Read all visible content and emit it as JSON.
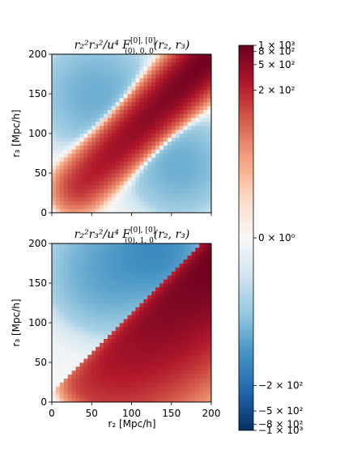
{
  "chart_data": [
    {
      "type": "heatmap",
      "title": "r_2^2 r_3^2/u^4 F^{[0],[0]}_{(0),0,0}(r_2, r_3)",
      "title_parts": {
        "main": "r₂²r₃²/u⁴ F",
        "sup": "[0], [0]",
        "sub": "(0), 0, 0",
        "args": "(r₂, r₃)"
      },
      "xlabel": "",
      "ylabel": "r₃ [Mpc/h]",
      "xlim": [
        0,
        200
      ],
      "ylim": [
        0,
        200
      ],
      "xticks": [
        "0",
        "50",
        "100",
        "150",
        "200"
      ],
      "yticks": [
        "0",
        "50",
        "100",
        "150",
        "200"
      ],
      "show_xtick_labels": false,
      "pattern": "diagonal_ridge",
      "description_values": {
        "peak": 850,
        "negative_min": -80,
        "ridge_width_mpc": 30
      }
    },
    {
      "type": "heatmap",
      "title": "r_2^2 r_3^2/u^4 F^{[0],[0]}_{(0),1,0}(r_2, r_3)",
      "title_parts": {
        "main": "r₂²r₃²/u⁴ F",
        "sup": "[0], [0]",
        "sub": "(0), 1, 0",
        "args": "(r₂, r₃)"
      },
      "xlabel": "r₂ [Mpc/h]",
      "ylabel": "r₃ [Mpc/h]",
      "xlim": [
        0,
        200
      ],
      "ylim": [
        0,
        200
      ],
      "xticks": [
        "0",
        "50",
        "100",
        "150",
        "200"
      ],
      "yticks": [
        "0",
        "50",
        "100",
        "150",
        "200"
      ],
      "show_xtick_labels": true,
      "pattern": "lower_triangle_positive",
      "description_values": {
        "peak": 1000,
        "negative_min": -150
      }
    }
  ],
  "colorbar": {
    "colormap": "RdBu_r",
    "range": [
      -1000,
      1000
    ],
    "symlog_linthresh": 10,
    "ticks": [
      {
        "value": 1000,
        "label": "1 × 10³"
      },
      {
        "value": 800,
        "label": "8 × 10²"
      },
      {
        "value": 500,
        "label": "5 × 10²"
      },
      {
        "value": 200,
        "label": "2 × 10²"
      },
      {
        "value": 0,
        "label": "0 × 10⁰"
      },
      {
        "value": -200,
        "label": "−2 × 10²"
      },
      {
        "value": -500,
        "label": "−5 × 10²"
      },
      {
        "value": -800,
        "label": "−8 × 10²"
      },
      {
        "value": -1000,
        "label": "−1 × 10³"
      }
    ],
    "colors": {
      "max": "#67001f",
      "mid": "#f7f7f7",
      "min": "#053061"
    }
  }
}
